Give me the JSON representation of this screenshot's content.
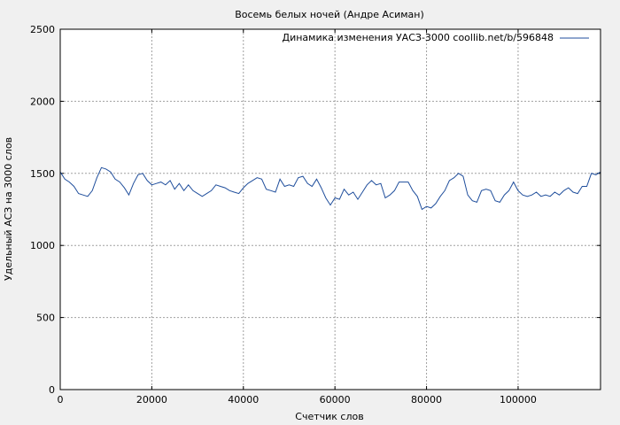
{
  "chart_data": {
    "type": "line",
    "title": "Восемь белых ночей (Андре Асиман)",
    "xlabel": "Счетчик слов",
    "ylabel": "Удельный АСЗ на 3000 слов",
    "xlim": [
      0,
      118000
    ],
    "ylim": [
      0,
      2500
    ],
    "x_ticks": [
      0,
      20000,
      40000,
      60000,
      80000,
      100000
    ],
    "x_tick_labels": [
      "0",
      "20000",
      "40000",
      "60000",
      "80000",
      "100000"
    ],
    "y_ticks": [
      0,
      500,
      1000,
      1500,
      2000,
      2500
    ],
    "y_tick_labels": [
      "0",
      "500",
      "1000",
      "1500",
      "2000",
      "2500"
    ],
    "grid": true,
    "legend_position": "top-right",
    "colors": {
      "line": "#1f4e9c",
      "background": "#f0f0f0",
      "plot_area": "#ffffff"
    },
    "series": [
      {
        "name": "Динамика изменения УАСЗ-3000 coollib.net/b/596848",
        "x": [
          0,
          1000,
          2000,
          3000,
          4000,
          5000,
          6000,
          7000,
          8000,
          9000,
          10000,
          11000,
          12000,
          13000,
          14000,
          15000,
          16000,
          17000,
          18000,
          19000,
          20000,
          21000,
          22000,
          23000,
          24000,
          25000,
          26000,
          27000,
          28000,
          29000,
          30000,
          31000,
          32000,
          33000,
          34000,
          35000,
          36000,
          37000,
          38000,
          39000,
          40000,
          41000,
          42000,
          43000,
          44000,
          45000,
          46000,
          47000,
          48000,
          49000,
          50000,
          51000,
          52000,
          53000,
          54000,
          55000,
          56000,
          57000,
          58000,
          59000,
          60000,
          61000,
          62000,
          63000,
          64000,
          65000,
          66000,
          67000,
          68000,
          69000,
          70000,
          71000,
          72000,
          73000,
          74000,
          75000,
          76000,
          77000,
          78000,
          79000,
          80000,
          81000,
          82000,
          83000,
          84000,
          85000,
          86000,
          87000,
          88000,
          89000,
          90000,
          91000,
          92000,
          93000,
          94000,
          95000,
          96000,
          97000,
          98000,
          99000,
          100000,
          101000,
          102000,
          103000,
          104000,
          105000,
          106000,
          107000,
          108000,
          109000,
          110000,
          111000,
          112000,
          113000,
          114000,
          115000,
          116000,
          117000,
          118000
        ],
        "y": [
          1510,
          1460,
          1440,
          1410,
          1360,
          1350,
          1340,
          1380,
          1470,
          1540,
          1530,
          1510,
          1460,
          1440,
          1400,
          1350,
          1430,
          1490,
          1500,
          1450,
          1420,
          1430,
          1440,
          1420,
          1450,
          1390,
          1430,
          1380,
          1420,
          1380,
          1360,
          1340,
          1360,
          1380,
          1420,
          1410,
          1400,
          1380,
          1370,
          1360,
          1400,
          1430,
          1450,
          1470,
          1460,
          1390,
          1380,
          1370,
          1460,
          1410,
          1420,
          1410,
          1470,
          1480,
          1430,
          1410,
          1460,
          1400,
          1330,
          1280,
          1330,
          1320,
          1390,
          1350,
          1370,
          1320,
          1370,
          1420,
          1450,
          1420,
          1430,
          1330,
          1350,
          1380,
          1440,
          1440,
          1440,
          1380,
          1340,
          1250,
          1270,
          1260,
          1290,
          1340,
          1380,
          1450,
          1470,
          1500,
          1480,
          1350,
          1310,
          1300,
          1380,
          1390,
          1380,
          1310,
          1300,
          1350,
          1380,
          1440,
          1380,
          1350,
          1340,
          1350,
          1370,
          1340,
          1350,
          1340,
          1370,
          1350,
          1380,
          1400,
          1370,
          1360,
          1410,
          1410,
          1500,
          1490,
          1510
        ]
      }
    ]
  }
}
